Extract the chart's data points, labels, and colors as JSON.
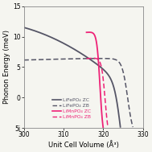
{
  "title": "",
  "xlabel": "Unit Cell Volume (Å³)",
  "ylabel": "Phonon Energy (meV)",
  "xlim": [
    300,
    330
  ],
  "ylim": [
    -5,
    15
  ],
  "yticks": [
    -5,
    0,
    5,
    10,
    15
  ],
  "ytick_labels": [
    "5i",
    "0",
    "5",
    "10",
    "15"
  ],
  "xticks": [
    300,
    310,
    320,
    330
  ],
  "dark_color": "#555566",
  "pink_color": "#ee2277",
  "background": "#f5f5f0",
  "legend_entries": [
    {
      "label": "LiFePO₄ ZC",
      "color": "#555566",
      "style": "solid"
    },
    {
      "label": "LiFePO₄ ZB",
      "color": "#555566",
      "style": "dashed"
    },
    {
      "label": "LiMnPO₄ ZC",
      "color": "#ee2277",
      "style": "solid"
    },
    {
      "label": "LiMnPO₄ ZB",
      "color": "#ee2277",
      "style": "dashed"
    }
  ]
}
